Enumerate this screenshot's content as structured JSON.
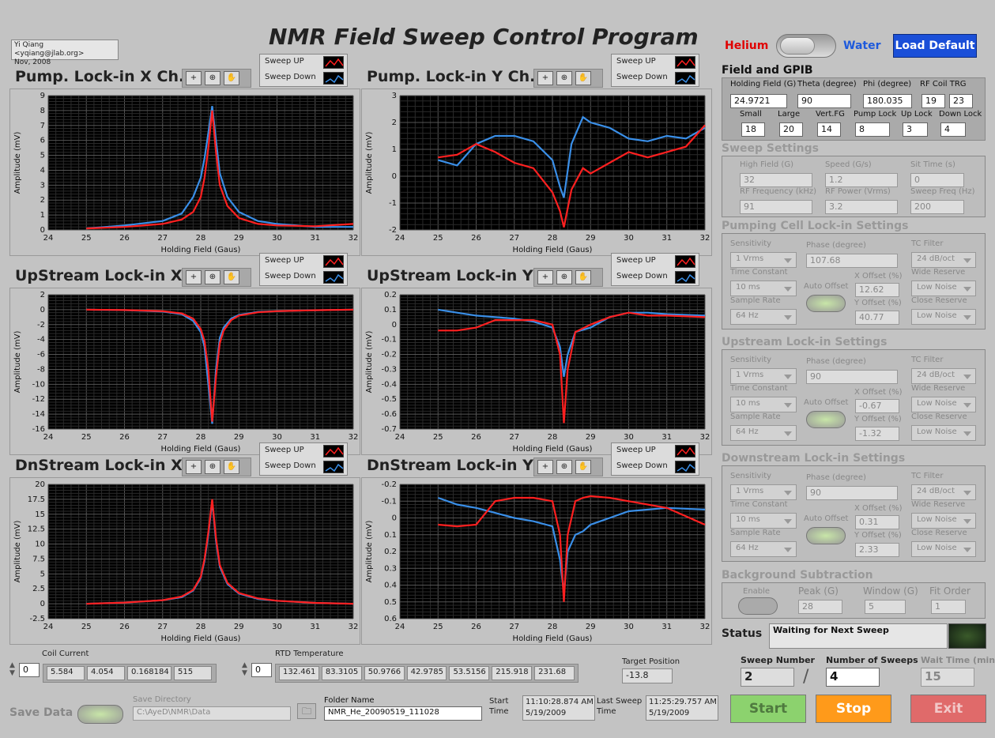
{
  "app_title": "NMR Field Sweep Control Program",
  "author_note": {
    "line1": "Yi Qiang <yqiang@jlab.org>",
    "line2": "Nov, 2008"
  },
  "mode_toggle": {
    "left_label": "Helium",
    "right_label": "Water",
    "left_color": "#e00000",
    "right_color": "#1e5adc"
  },
  "load_default_label": "Load Default",
  "plot_legend": {
    "up": "Sweep UP",
    "down": "Sweep Down",
    "up_color": "#ff2020",
    "down_color": "#3a8fe8"
  },
  "plots": [
    {
      "id": "pump-x",
      "title": "Pump. Lock-in X Ch.",
      "xlabel": "Holding Field (Gaus)",
      "ylabel": "Amplitude (mV)",
      "xlim": [
        24,
        32
      ],
      "ylim": [
        0,
        9
      ],
      "yticks": [
        "9",
        "8",
        "7",
        "6",
        "5",
        "4",
        "3",
        "2",
        "1",
        "0"
      ],
      "xticks": [
        "24",
        "25",
        "26",
        "27",
        "28",
        "29",
        "30",
        "31",
        "32"
      ]
    },
    {
      "id": "pump-y",
      "title": "Pump. Lock-in Y Ch.",
      "xlabel": "Holding Field (Gaus)",
      "ylabel": "Amplitude (mV)",
      "xlim": [
        24,
        32
      ],
      "ylim": [
        -2,
        3
      ],
      "yticks": [
        "3",
        "2",
        "1",
        "0",
        "-1",
        "-2"
      ],
      "xticks": [
        "24",
        "25",
        "26",
        "27",
        "28",
        "29",
        "30",
        "31",
        "32"
      ]
    },
    {
      "id": "up-x",
      "title": "UpStream Lock-in X",
      "xlabel": "Holding Field (Gaus)",
      "ylabel": "Amplitude (mV)",
      "xlim": [
        24,
        32
      ],
      "ylim": [
        -16,
        2
      ],
      "yticks": [
        "2",
        "0",
        "-2",
        "-4",
        "-6",
        "-8",
        "-10",
        "-12",
        "-14",
        "-16"
      ],
      "xticks": [
        "24",
        "25",
        "26",
        "27",
        "28",
        "29",
        "30",
        "31",
        "32"
      ]
    },
    {
      "id": "up-y",
      "title": "UpStream Lock-in Y",
      "xlabel": "Holding Field (Gaus)",
      "ylabel": "Amplitude (mV)",
      "xlim": [
        24,
        32
      ],
      "ylim": [
        -0.7,
        0.2
      ],
      "yticks": [
        "0.2",
        "0.1",
        "0",
        "-0.1",
        "-0.2",
        "-0.3",
        "-0.4",
        "-0.5",
        "-0.6",
        "-0.7"
      ],
      "xticks": [
        "24",
        "25",
        "26",
        "27",
        "28",
        "29",
        "30",
        "31",
        "32"
      ]
    },
    {
      "id": "dn-x",
      "title": "DnStream Lock-in X",
      "xlabel": "Holding Field (Gaus)",
      "ylabel": "Amplitude (mV)",
      "xlim": [
        24,
        32
      ],
      "ylim": [
        -2.5,
        20
      ],
      "yticks": [
        "20",
        "17.5",
        "15",
        "12.5",
        "10",
        "7.5",
        "5",
        "2.5",
        "0",
        "-2.5"
      ],
      "xticks": [
        "24",
        "25",
        "26",
        "27",
        "28",
        "29",
        "30",
        "31",
        "32"
      ]
    },
    {
      "id": "dn-y",
      "title": "DnStream Lock-in Y",
      "xlabel": "Holding Field (Gaus)",
      "ylabel": "Amplitude (mV)",
      "xlim": [
        24,
        32
      ],
      "ylim": [
        0.6,
        -0.2
      ],
      "yticks": [
        "-0.2",
        "-0.1",
        "0",
        "0.1",
        "0.2",
        "0.3",
        "0.4",
        "0.5",
        "0.6"
      ],
      "xticks": [
        "24",
        "25",
        "26",
        "27",
        "28",
        "29",
        "30",
        "31",
        "32"
      ]
    }
  ],
  "chart_data": [
    {
      "type": "line",
      "x": [
        25,
        26,
        27,
        27.5,
        27.8,
        28,
        28.1,
        28.2,
        28.3,
        28.4,
        28.5,
        28.7,
        29,
        29.5,
        30,
        31,
        32
      ],
      "series": [
        {
          "name": "Sweep UP",
          "values": [
            0.1,
            0.2,
            0.4,
            0.7,
            1.2,
            2.2,
            3.5,
            5.5,
            8.0,
            5.2,
            3.0,
            1.6,
            0.8,
            0.4,
            0.3,
            0.25,
            0.4
          ]
        },
        {
          "name": "Sweep Down",
          "values": [
            0.1,
            0.3,
            0.6,
            1.1,
            2.2,
            3.5,
            4.8,
            6.5,
            8.3,
            6.0,
            3.8,
            2.2,
            1.2,
            0.6,
            0.4,
            0.2,
            0.2
          ]
        }
      ]
    },
    {
      "type": "line",
      "x": [
        25,
        25.5,
        26,
        26.5,
        27,
        27.5,
        28,
        28.2,
        28.3,
        28.5,
        28.8,
        29,
        29.5,
        30,
        30.5,
        31,
        31.5,
        32
      ],
      "series": [
        {
          "name": "Sweep UP",
          "values": [
            0.7,
            0.8,
            1.2,
            0.9,
            0.5,
            0.3,
            -0.6,
            -1.3,
            -1.9,
            -0.5,
            0.3,
            0.1,
            0.5,
            0.9,
            0.7,
            0.9,
            1.1,
            1.9
          ]
        },
        {
          "name": "Sweep Down",
          "values": [
            0.6,
            0.4,
            1.2,
            1.5,
            1.5,
            1.3,
            0.6,
            -0.4,
            -0.8,
            1.2,
            2.2,
            2.0,
            1.8,
            1.4,
            1.3,
            1.5,
            1.4,
            1.8
          ]
        }
      ]
    },
    {
      "type": "line",
      "x": [
        25,
        26,
        27,
        27.5,
        27.8,
        28,
        28.1,
        28.2,
        28.3,
        28.4,
        28.5,
        28.6,
        28.8,
        29,
        29.5,
        30,
        31,
        32
      ],
      "series": [
        {
          "name": "Sweep UP",
          "values": [
            0,
            -0.05,
            -0.2,
            -0.5,
            -1.2,
            -2.6,
            -4.2,
            -8,
            -15,
            -9,
            -4.5,
            -2.8,
            -1.4,
            -0.8,
            -0.35,
            -0.2,
            -0.08,
            0
          ]
        },
        {
          "name": "Sweep Down",
          "values": [
            0,
            -0.06,
            -0.25,
            -0.6,
            -1.5,
            -3,
            -5,
            -10,
            -15.3,
            -8,
            -3.8,
            -2.4,
            -1.2,
            -0.7,
            -0.3,
            -0.2,
            -0.08,
            0
          ]
        }
      ]
    },
    {
      "type": "line",
      "x": [
        25,
        25.5,
        26,
        26.5,
        27,
        27.5,
        28,
        28.2,
        28.3,
        28.4,
        28.6,
        29,
        29.5,
        30,
        30.5,
        31,
        32
      ],
      "series": [
        {
          "name": "Sweep UP",
          "values": [
            -0.04,
            -0.04,
            -0.02,
            0.03,
            0.03,
            0.03,
            0,
            -0.2,
            -0.66,
            -0.3,
            -0.05,
            0.0,
            0.05,
            0.08,
            0.06,
            0.06,
            0.05
          ]
        },
        {
          "name": "Sweep Down",
          "values": [
            0.1,
            0.08,
            0.06,
            0.05,
            0.04,
            0.02,
            -0.02,
            -0.15,
            -0.35,
            -0.2,
            -0.05,
            -0.02,
            0.05,
            0.08,
            0.08,
            0.07,
            0.06
          ]
        }
      ]
    },
    {
      "type": "line",
      "x": [
        25,
        26,
        27,
        27.5,
        27.8,
        28,
        28.1,
        28.2,
        28.3,
        28.4,
        28.5,
        28.7,
        29,
        29.5,
        30,
        31,
        32
      ],
      "series": [
        {
          "name": "Sweep UP",
          "values": [
            0,
            0.2,
            0.6,
            1.2,
            2.3,
            4.5,
            7.5,
            12,
            17.5,
            11,
            6.5,
            3.5,
            1.8,
            0.9,
            0.5,
            0.15,
            0
          ]
        },
        {
          "name": "Sweep Down",
          "values": [
            0,
            0.2,
            0.6,
            1.1,
            2.2,
            4.3,
            7.2,
            11.5,
            17.2,
            10.5,
            6.2,
            3.3,
            1.7,
            0.8,
            0.5,
            0.15,
            0
          ]
        }
      ]
    },
    {
      "type": "line",
      "x": [
        25,
        25.5,
        26,
        26.5,
        27,
        27.5,
        28,
        28.2,
        28.3,
        28.4,
        28.6,
        28.8,
        29,
        29.5,
        30,
        31,
        32
      ],
      "series": [
        {
          "name": "Sweep UP",
          "values": [
            0.04,
            0.05,
            0.04,
            -0.1,
            -0.12,
            -0.12,
            -0.1,
            0.1,
            0.5,
            0.1,
            -0.1,
            -0.12,
            -0.13,
            -0.12,
            -0.1,
            -0.06,
            0.04
          ]
        },
        {
          "name": "Sweep Down",
          "values": [
            -0.12,
            -0.08,
            -0.06,
            -0.03,
            0,
            0.02,
            0.05,
            0.25,
            0.45,
            0.2,
            0.1,
            0.08,
            0.04,
            0,
            -0.04,
            -0.06,
            -0.05
          ]
        }
      ]
    }
  ],
  "field_gpib": {
    "title": "Field and GPIB",
    "holding_field": {
      "label": "Holding Field (G)",
      "value": "24.9721"
    },
    "theta": {
      "label": "Theta (degree)",
      "value": "90"
    },
    "phi": {
      "label": "Phi (degree)",
      "value": "180.035"
    },
    "rf_coil": {
      "label": "RF Coil TRG",
      "value1": "19",
      "value2": "23"
    },
    "small": {
      "label": "Small",
      "value": "18"
    },
    "large": {
      "label": "Large",
      "value": "20"
    },
    "vert": {
      "label": "Vert.FG",
      "value": "14"
    },
    "pump_lock": {
      "label": "Pump Lock",
      "value": "8"
    },
    "up_lock": {
      "label": "Up Lock",
      "value": "3"
    },
    "down_lock": {
      "label": "Down Lock",
      "value": "4"
    }
  },
  "sweep_settings": {
    "title": "Sweep Settings",
    "high_field": {
      "label": "High Field (G)",
      "value": "32"
    },
    "speed": {
      "label": "Speed (G/s)",
      "value": "1.2"
    },
    "sit_time": {
      "label": "Sit Time (s)",
      "value": "0"
    },
    "rf_freq": {
      "label": "RF Frequency (kHz)",
      "value": "91"
    },
    "rf_power": {
      "label": "RF Power (Vrms)",
      "value": "3.2"
    },
    "sweep_freq": {
      "label": "Sweep Freq (Hz)",
      "value": "200"
    }
  },
  "lockins": [
    {
      "title": "Pumping Cell Lock-in Settings",
      "sensitivity_label": "Sensitivity",
      "sensitivity": "1 Vrms",
      "phase_label": "Phase (degree)",
      "phase": "107.68",
      "tc_filter_label": "TC Filter",
      "tc_filter": "24 dB/oct",
      "time_constant_label": "Time Constant",
      "time_constant": "10 ms",
      "auto_offset_label": "Auto Offset",
      "x_offset_label": "X Offset (%)",
      "x_offset": "12.62",
      "wide_reserve_label": "Wide Reserve",
      "wide_reserve": "Low Noise",
      "sample_rate_label": "Sample Rate",
      "sample_rate": "64 Hz",
      "y_offset_label": "Y Offset (%)",
      "y_offset": "40.77",
      "close_reserve_label": "Close Reserve",
      "close_reserve": "Low Noise"
    },
    {
      "title": "Upstream Lock-in Settings",
      "sensitivity_label": "Sensitivity",
      "sensitivity": "1 Vrms",
      "phase_label": "Phase (degree)",
      "phase": "90",
      "tc_filter_label": "TC Filter",
      "tc_filter": "24 dB/oct",
      "time_constant_label": "Time Constant",
      "time_constant": "10 ms",
      "auto_offset_label": "Auto Offset",
      "x_offset_label": "X Offset (%)",
      "x_offset": "-0.67",
      "wide_reserve_label": "Wide Reserve",
      "wide_reserve": "Low Noise",
      "sample_rate_label": "Sample Rate",
      "sample_rate": "64 Hz",
      "y_offset_label": "Y Offset (%)",
      "y_offset": "-1.32",
      "close_reserve_label": "Close Reserve",
      "close_reserve": "Low Noise"
    },
    {
      "title": "Downstream Lock-in Settings",
      "sensitivity_label": "Sensitivity",
      "sensitivity": "1 Vrms",
      "phase_label": "Phase (degree)",
      "phase": "90",
      "tc_filter_label": "TC Filter",
      "tc_filter": "24 dB/oct",
      "time_constant_label": "Time Constant",
      "time_constant": "10 ms",
      "auto_offset_label": "Auto Offset",
      "x_offset_label": "X Offset (%)",
      "x_offset": "0.31",
      "wide_reserve_label": "Wide Reserve",
      "wide_reserve": "Low Noise",
      "sample_rate_label": "Sample Rate",
      "sample_rate": "64 Hz",
      "y_offset_label": "Y Offset (%)",
      "y_offset": "2.33",
      "close_reserve_label": "Close Reserve",
      "close_reserve": "Low Noise"
    }
  ],
  "background": {
    "title": "Background Subtraction",
    "enable_label": "Enable",
    "peak_label": "Peak (G)",
    "peak": "28",
    "window_label": "Window (G)",
    "window": "5",
    "fit_order_label": "Fit Order",
    "fit_order": "1"
  },
  "status": {
    "label": "Status",
    "text": "Waiting for Next Sweep"
  },
  "sweep_number": {
    "label": "Sweep Number",
    "value": "2"
  },
  "number_of_sweeps": {
    "label": "Number of Sweeps",
    "value": "4"
  },
  "wait_time": {
    "label": "Wait Time (min)",
    "value": "15"
  },
  "coil_current": {
    "label": "Coil Current",
    "index": "0",
    "values": [
      "5.584",
      "4.054",
      "0.168184",
      "515"
    ]
  },
  "rtd": {
    "label": "RTD Temperature",
    "index": "0",
    "values": [
      "132.461",
      "83.3105",
      "50.9766",
      "42.9785",
      "53.5156",
      "215.918",
      "231.68"
    ]
  },
  "target_position": {
    "label": "Target Position",
    "value": "-13.8"
  },
  "save_data_label": "Save Data",
  "save_directory": {
    "label": "Save Directory",
    "value": "C:\\AyeD\\NMR\\Data"
  },
  "folder_name": {
    "label": "Folder Name",
    "value": "NMR_He_20090519_111028"
  },
  "start_time": {
    "label_line1": "Start",
    "label_line2": "Time",
    "time": "11:10:28.874 AM",
    "date": "5/19/2009"
  },
  "last_sweep_time": {
    "label_line1": "Last Sweep",
    "label_line2": "Time",
    "time": "11:25:29.757 AM",
    "date": "5/19/2009"
  },
  "buttons": {
    "start": "Start",
    "stop": "Stop",
    "exit": "Exit"
  }
}
